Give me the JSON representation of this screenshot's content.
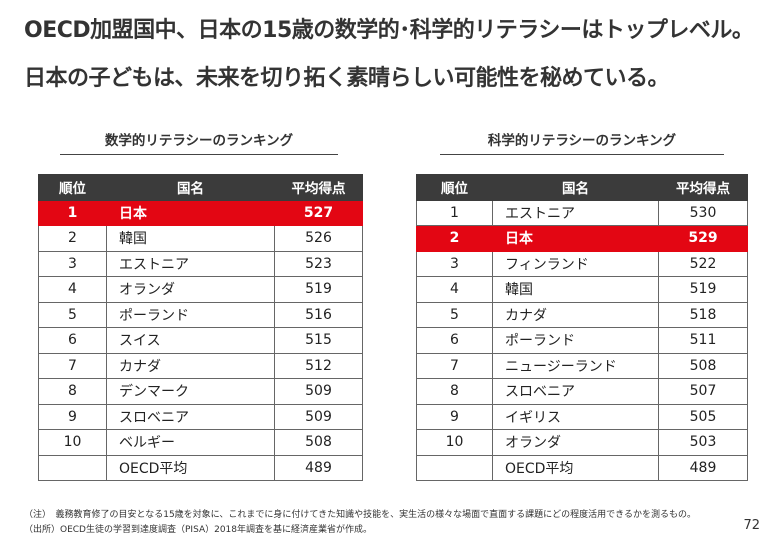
{
  "headline": {
    "line1": "OECD加盟国中、日本の15歳の数学的･科学的リテラシーはトップレベル。",
    "line2": "日本の子どもは、未来を切り拓く素晴らしい可能性を秘めている。"
  },
  "math": {
    "title": "数学的リテラシーのランキング",
    "headers": {
      "rank": "順位",
      "country": "国名",
      "score": "平均得点"
    },
    "rows": [
      {
        "rank": "1",
        "country": "日本",
        "score": "527",
        "highlight": true
      },
      {
        "rank": "2",
        "country": "韓国",
        "score": "526"
      },
      {
        "rank": "3",
        "country": "エストニア",
        "score": "523"
      },
      {
        "rank": "4",
        "country": "オランダ",
        "score": "519"
      },
      {
        "rank": "5",
        "country": "ポーランド",
        "score": "516"
      },
      {
        "rank": "6",
        "country": "スイス",
        "score": "515"
      },
      {
        "rank": "7",
        "country": "カナダ",
        "score": "512"
      },
      {
        "rank": "8",
        "country": "デンマーク",
        "score": "509"
      },
      {
        "rank": "9",
        "country": "スロベニア",
        "score": "509"
      },
      {
        "rank": "10",
        "country": "ベルギー",
        "score": "508"
      },
      {
        "rank": "",
        "country": "OECD平均",
        "score": "489"
      }
    ]
  },
  "science": {
    "title": "科学的リテラシーのランキング",
    "headers": {
      "rank": "順位",
      "country": "国名",
      "score": "平均得点"
    },
    "rows": [
      {
        "rank": "1",
        "country": "エストニア",
        "score": "530"
      },
      {
        "rank": "2",
        "country": "日本",
        "score": "529",
        "highlight": true
      },
      {
        "rank": "3",
        "country": "フィンランド",
        "score": "522"
      },
      {
        "rank": "4",
        "country": "韓国",
        "score": "519"
      },
      {
        "rank": "5",
        "country": "カナダ",
        "score": "518"
      },
      {
        "rank": "6",
        "country": "ポーランド",
        "score": "511"
      },
      {
        "rank": "7",
        "country": "ニュージーランド",
        "score": "508"
      },
      {
        "rank": "8",
        "country": "スロベニア",
        "score": "507"
      },
      {
        "rank": "9",
        "country": "イギリス",
        "score": "505"
      },
      {
        "rank": "10",
        "country": "オランダ",
        "score": "503"
      },
      {
        "rank": "",
        "country": "OECD平均",
        "score": "489"
      }
    ]
  },
  "notes": {
    "note1": "（注）　義務教育修了の目安となる15歳を対象に、これまでに身に付けてきた知識や技能を、実生活の様々な場面で直面する課題にどの程度活用できるかを測るもの。",
    "note2": "（出所）OECD生徒の学習到達度調査（PISA）2018年調査を基に経済産業省が作成。"
  },
  "page_number": "72",
  "colors": {
    "highlight": "#e30613",
    "header": "#3b3b3b"
  }
}
